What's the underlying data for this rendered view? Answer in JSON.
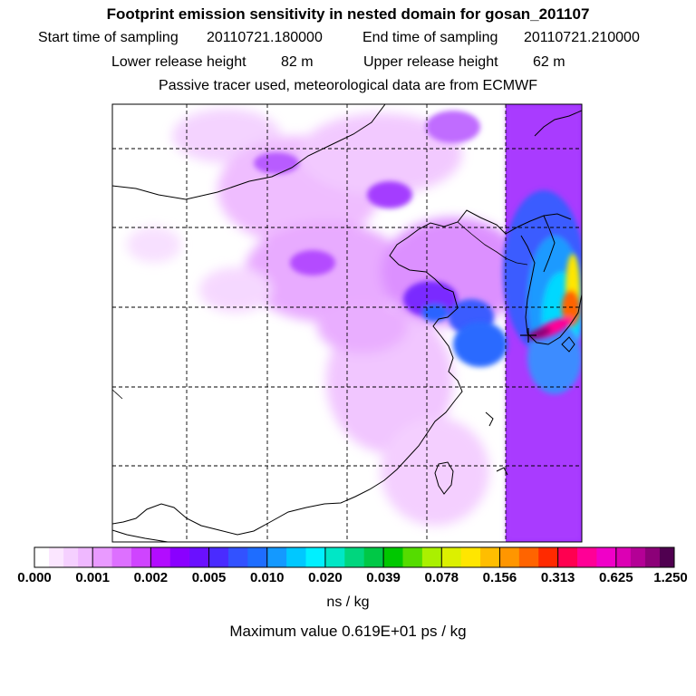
{
  "title": "Footprint emission sensitivity in nested domain for gosan_201107",
  "sampling": {
    "start_label": "Start time of sampling",
    "start_value": "20110721.180000",
    "end_label": "End time of sampling",
    "end_value": "20110721.210000"
  },
  "release": {
    "lower_label": "Lower release height",
    "lower_value": "82 m",
    "upper_label": "Upper release height",
    "upper_value": "62 m"
  },
  "note": "Passive tracer used, meteorological data are from ECMWF",
  "colorbar": {
    "labels": [
      "0.000",
      "0.001",
      "0.002",
      "0.005",
      "0.010",
      "0.020",
      "0.039",
      "0.078",
      "0.156",
      "0.313",
      "0.625",
      "1.250"
    ],
    "colors": [
      [
        "#ffffff",
        "#fbe6ff",
        "#f5d0ff",
        "#efb8ff"
      ],
      [
        "#e99aff",
        "#dd70ff",
        "#cf44ff"
      ],
      [
        "#b20cff",
        "#8a00ff",
        "#6a10ff"
      ],
      [
        "#4a2bff",
        "#3252ff",
        "#1e6dff"
      ],
      [
        "#1499ff",
        "#00c8ff",
        "#00f0ff"
      ],
      [
        "#00e7c6",
        "#00d67e",
        "#00c846"
      ],
      [
        "#00c800",
        "#55dc00",
        "#aaf000"
      ],
      [
        "#dcf000",
        "#ffe600",
        "#ffbe00"
      ],
      [
        "#ff9600",
        "#ff6400",
        "#ff2a00"
      ],
      [
        "#ff0050",
        "#ff0096",
        "#f000c8"
      ],
      [
        "#dc00b4",
        "#b40096",
        "#8c0078",
        "#500050"
      ]
    ],
    "unit": "ns / kg"
  },
  "max_value": "Maximum value  0.619E+01 ps / kg"
}
